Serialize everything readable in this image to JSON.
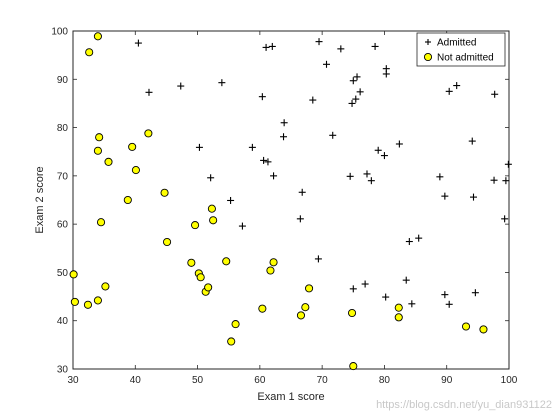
{
  "chart_data": {
    "type": "scatter",
    "title": "",
    "xlabel": "Exam 1 score",
    "ylabel": "Exam 2 score",
    "xlim": [
      30,
      100
    ],
    "ylim": [
      30,
      100
    ],
    "xticks": [
      30,
      40,
      50,
      60,
      70,
      80,
      90,
      100
    ],
    "yticks": [
      30,
      40,
      50,
      60,
      70,
      80,
      90,
      100
    ],
    "grid": false,
    "legend_position": "top-right",
    "series": [
      {
        "name": "Admitted",
        "marker": "plus",
        "color": "#000000",
        "points": [
          [
            40.5,
            97.5
          ],
          [
            61.0,
            96.6
          ],
          [
            62.0,
            96.8
          ],
          [
            69.5,
            97.8
          ],
          [
            73.0,
            96.3
          ],
          [
            78.5,
            96.8
          ],
          [
            42.2,
            87.3
          ],
          [
            47.3,
            88.6
          ],
          [
            53.9,
            89.3
          ],
          [
            60.4,
            86.4
          ],
          [
            70.7,
            93.1
          ],
          [
            68.5,
            85.7
          ],
          [
            75.0,
            89.7
          ],
          [
            75.6,
            90.5
          ],
          [
            76.1,
            87.4
          ],
          [
            74.8,
            85.0
          ],
          [
            75.4,
            85.9
          ],
          [
            80.3,
            92.2
          ],
          [
            80.3,
            91.1
          ],
          [
            90.4,
            87.5
          ],
          [
            91.6,
            88.7
          ],
          [
            97.7,
            86.9
          ],
          [
            63.9,
            81.0
          ],
          [
            63.8,
            78.1
          ],
          [
            71.7,
            78.4
          ],
          [
            50.3,
            75.9
          ],
          [
            58.8,
            75.9
          ],
          [
            82.4,
            76.6
          ],
          [
            94.1,
            77.2
          ],
          [
            79.0,
            75.3
          ],
          [
            80.0,
            74.2
          ],
          [
            60.6,
            73.2
          ],
          [
            61.3,
            72.9
          ],
          [
            52.1,
            69.6
          ],
          [
            62.2,
            70.0
          ],
          [
            74.5,
            69.9
          ],
          [
            77.2,
            70.4
          ],
          [
            77.9,
            69.0
          ],
          [
            88.9,
            69.8
          ],
          [
            97.6,
            69.1
          ],
          [
            99.5,
            69.0
          ],
          [
            99.9,
            72.4
          ],
          [
            55.3,
            64.9
          ],
          [
            66.8,
            66.6
          ],
          [
            89.7,
            65.8
          ],
          [
            94.3,
            65.6
          ],
          [
            57.2,
            59.6
          ],
          [
            66.5,
            61.1
          ],
          [
            99.3,
            61.1
          ],
          [
            84.0,
            56.4
          ],
          [
            85.5,
            57.1
          ],
          [
            69.4,
            52.8
          ],
          [
            75.0,
            46.6
          ],
          [
            76.9,
            47.6
          ],
          [
            80.2,
            44.9
          ],
          [
            83.5,
            48.4
          ],
          [
            84.4,
            43.5
          ],
          [
            89.7,
            45.4
          ],
          [
            90.4,
            43.4
          ],
          [
            94.6,
            45.8
          ]
        ]
      },
      {
        "name": "Not admitted",
        "marker": "circle",
        "color": "#ffff00",
        "edgecolor": "#000000",
        "points": [
          [
            34.0,
            98.9
          ],
          [
            32.6,
            95.6
          ],
          [
            34.2,
            78.0
          ],
          [
            34.0,
            75.2
          ],
          [
            35.7,
            72.9
          ],
          [
            39.5,
            76.0
          ],
          [
            42.1,
            78.8
          ],
          [
            40.1,
            71.2
          ],
          [
            34.5,
            60.4
          ],
          [
            38.8,
            65.0
          ],
          [
            44.7,
            66.5
          ],
          [
            45.1,
            56.3
          ],
          [
            49.6,
            59.8
          ],
          [
            52.3,
            63.2
          ],
          [
            52.5,
            60.8
          ],
          [
            30.1,
            49.6
          ],
          [
            30.3,
            43.9
          ],
          [
            32.4,
            43.3
          ],
          [
            34.0,
            44.2
          ],
          [
            35.2,
            47.1
          ],
          [
            49.0,
            52.0
          ],
          [
            50.2,
            49.8
          ],
          [
            50.5,
            49.0
          ],
          [
            51.3,
            46.0
          ],
          [
            51.7,
            46.9
          ],
          [
            54.6,
            52.3
          ],
          [
            61.7,
            50.4
          ],
          [
            62.2,
            52.1
          ],
          [
            55.4,
            35.7
          ],
          [
            56.1,
            39.3
          ],
          [
            60.4,
            42.5
          ],
          [
            66.6,
            41.1
          ],
          [
            67.3,
            42.8
          ],
          [
            67.9,
            46.7
          ],
          [
            74.8,
            41.6
          ],
          [
            75.0,
            30.6
          ],
          [
            82.3,
            42.7
          ],
          [
            82.3,
            40.7
          ],
          [
            93.1,
            38.8
          ],
          [
            95.9,
            38.2
          ]
        ]
      }
    ]
  },
  "watermark": "https://blog.csdn.net/yu_dian931122"
}
